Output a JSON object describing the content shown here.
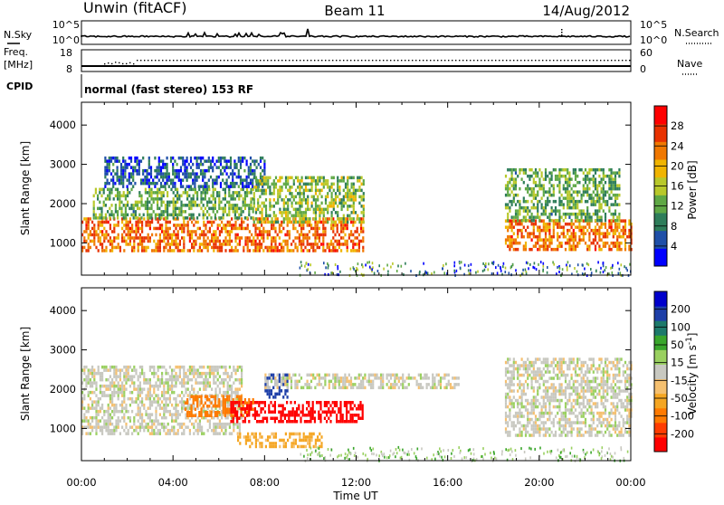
{
  "header": {
    "station": "Unwin (fitACF)",
    "beam": "Beam 11",
    "date": "14/Aug/2012"
  },
  "noise_panel": {
    "left_label": "N.Sky",
    "left_ticks": [
      "10^5",
      "10^0"
    ],
    "right_label": "N.Search",
    "right_ticks": [
      "10^5",
      "10^0"
    ]
  },
  "freq_panel": {
    "left_label_line1": "Freq.",
    "left_label_line2": "[MHz]",
    "left_ticks": [
      "18",
      "8"
    ],
    "right_label": "Nave",
    "right_ticks": [
      "60",
      "0"
    ]
  },
  "cpid_panel": {
    "label": "CPID",
    "mode_text": "normal (fast stereo) 153 RF"
  },
  "colors": {
    "power_scale": [
      "#0000ff",
      "#1f4fa8",
      "#2e7d5a",
      "#5fa845",
      "#b8c82a",
      "#f0b400",
      "#f07800",
      "#e83200",
      "#ff0000"
    ],
    "velocity_scale": [
      "#ff0000",
      "#ff3c00",
      "#ff7a00",
      "#f5a623",
      "#f5c070",
      "#c8c8c0",
      "#9ad060",
      "#3aa62c",
      "#1d7a6b",
      "#1e3fa8",
      "#0000cc"
    ]
  },
  "chart_data": [
    {
      "type": "heatmap",
      "panel": "power",
      "xlabel": "Time UT",
      "ylabel": "Slant Range [km]",
      "xlim": [
        "00:00",
        "24:00"
      ],
      "ylim": [
        180,
        4580
      ],
      "y_ticks": [
        1000,
        2000,
        3000,
        4000
      ],
      "x_ticks": [
        "00:00",
        "04:00",
        "08:00",
        "12:00",
        "16:00",
        "20:00",
        "00:00"
      ],
      "colorbar": {
        "label": "Power [dB]",
        "range": [
          0,
          32
        ],
        "ticks": [
          4,
          8,
          12,
          16,
          20,
          24,
          28
        ]
      },
      "regions": [
        {
          "t": [
            0.0,
            12.3
          ],
          "r": [
            800,
            1650
          ],
          "value": 24
        },
        {
          "t": [
            0.5,
            7.5
          ],
          "r": [
            1600,
            2400
          ],
          "value": 12
        },
        {
          "t": [
            1.0,
            8.0
          ],
          "r": [
            2400,
            3200
          ],
          "value": 6
        },
        {
          "t": [
            7.5,
            12.3
          ],
          "r": [
            1500,
            2700
          ],
          "value": 14
        },
        {
          "t": [
            18.5,
            24.0
          ],
          "r": [
            800,
            1600
          ],
          "value": 24
        },
        {
          "t": [
            18.5,
            23.5
          ],
          "r": [
            1600,
            2900
          ],
          "value": 12
        }
      ]
    },
    {
      "type": "heatmap",
      "panel": "velocity",
      "xlabel": "Time UT",
      "ylabel": "Slant Range [km]",
      "xlim": [
        "00:00",
        "24:00"
      ],
      "ylim": [
        180,
        4580
      ],
      "y_ticks": [
        1000,
        2000,
        3000,
        4000
      ],
      "x_ticks": [
        "00:00",
        "04:00",
        "08:00",
        "12:00",
        "16:00",
        "20:00",
        "00:00"
      ],
      "colorbar": {
        "label": "Velocity [m s^-1]",
        "ticks": [
          200,
          100,
          50,
          15,
          -15,
          -50,
          -100,
          -200
        ]
      },
      "regions": [
        {
          "t": [
            0.0,
            7.0
          ],
          "r": [
            900,
            2600
          ],
          "value": 0
        },
        {
          "t": [
            4.5,
            7.5
          ],
          "r": [
            1350,
            1850
          ],
          "value": -100
        },
        {
          "t": [
            6.5,
            12.3
          ],
          "r": [
            1150,
            1700
          ],
          "value": -200
        },
        {
          "t": [
            6.8,
            10.5
          ],
          "r": [
            500,
            900
          ],
          "value": -50
        },
        {
          "t": [
            8.0,
            9.0
          ],
          "r": [
            1800,
            2400
          ],
          "value": 150
        },
        {
          "t": [
            8.0,
            16.5
          ],
          "r": [
            2000,
            2400
          ],
          "value": 0
        },
        {
          "t": [
            18.5,
            24.0
          ],
          "r": [
            800,
            2800
          ],
          "value": 0
        }
      ]
    }
  ]
}
